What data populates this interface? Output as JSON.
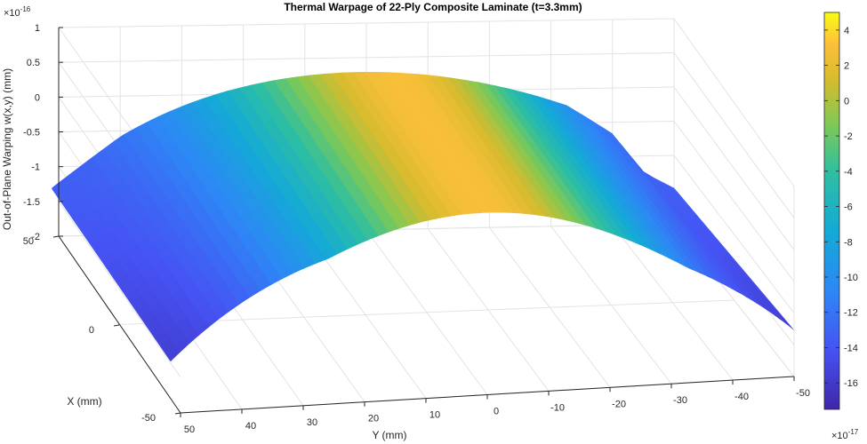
{
  "chart_data": {
    "type": "surface",
    "title": "Thermal Warpage of 22-Ply Composite Laminate (t=3.3mm)",
    "xlabel": "X (mm)",
    "ylabel": "Y (mm)",
    "zlabel": "Out-of-Plane Warping w(x,y) (mm)",
    "z_exponent_label": "×10",
    "z_exponent": "-16",
    "z_ticks": [
      "1",
      "0.5",
      "0",
      "-0.5",
      "-1",
      "-1.5",
      "-2"
    ],
    "z_tick_values": [
      1,
      0.5,
      0,
      -0.5,
      -1,
      -1.5,
      -2
    ],
    "x_ticks": [
      "50",
      "0",
      "-50"
    ],
    "y_ticks": [
      "50",
      "40",
      "30",
      "20",
      "10",
      "0",
      "-10",
      "-20",
      "-30",
      "-40",
      "-50"
    ],
    "xlim": [
      -50,
      50
    ],
    "ylim": [
      -50,
      50
    ],
    "zlim": [
      -2,
      1
    ],
    "grid": true,
    "colormap": "parula",
    "surface_samples": {
      "x": [
        50,
        0,
        -50
      ],
      "y": [
        50,
        0,
        -50
      ],
      "z_scale": "1e-16",
      "w_corner_x50_y50": -1.5,
      "w_center_edge_max": 0.55,
      "w_corner_x50_yminus50": -0.8
    },
    "colorbar": {
      "exponent_label": "×10",
      "exponent": "-17",
      "ticks": [
        "4",
        "2",
        "0",
        "-2",
        "-4",
        "-6",
        "-8",
        "-10",
        "-12",
        "-14",
        "-16"
      ],
      "tick_values": [
        4,
        2,
        0,
        -2,
        -4,
        -6,
        -8,
        -10,
        -12,
        -14,
        -16
      ],
      "range": [
        -17.5,
        5
      ]
    }
  }
}
